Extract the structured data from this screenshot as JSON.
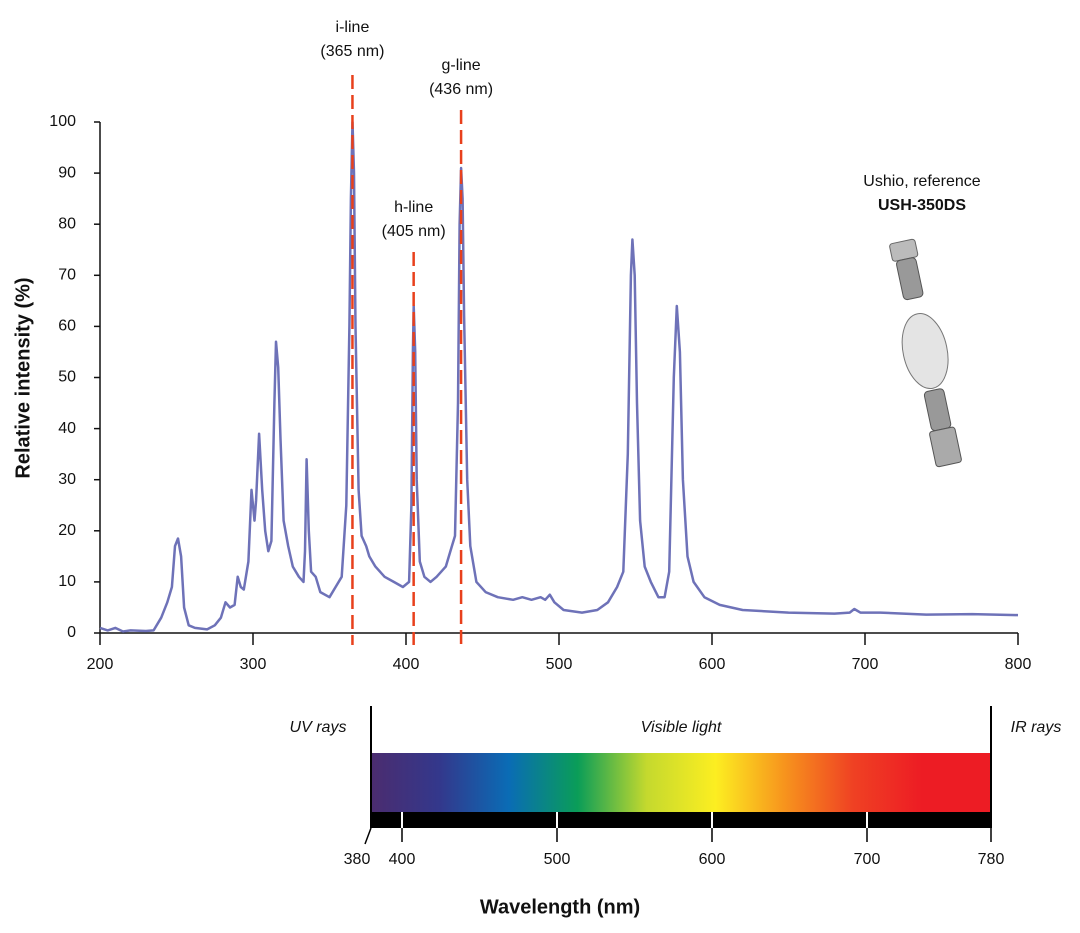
{
  "chart_data": [
    {
      "type": "line",
      "ylabel": "Relative intensity (%)",
      "xlim": [
        200,
        800
      ],
      "xticks": [
        200,
        300,
        400,
        500,
        600,
        700,
        800
      ],
      "ylim": [
        0,
        100
      ],
      "yticks": [
        0,
        10,
        20,
        30,
        40,
        50,
        60,
        70,
        80,
        90,
        100
      ],
      "color": "#6e72b8",
      "grid": false,
      "x": [
        200,
        205,
        210,
        215,
        220,
        230,
        235,
        240,
        244,
        247,
        249,
        251,
        253,
        255,
        258,
        262,
        270,
        275,
        279,
        282,
        285,
        288,
        290,
        292,
        294,
        297,
        299,
        301,
        302,
        304,
        306,
        308,
        310,
        312,
        314,
        315,
        316.5,
        318,
        320,
        323,
        326,
        330,
        333,
        334,
        335,
        336.5,
        338,
        341,
        344,
        350,
        354,
        358,
        361,
        363,
        364,
        365,
        366,
        367,
        369,
        371,
        374,
        376,
        380,
        386,
        392,
        398,
        402,
        403.5,
        404.5,
        405,
        406,
        407,
        409,
        412,
        416,
        420,
        426,
        430,
        432,
        434,
        435,
        436,
        437,
        438,
        440,
        442,
        446,
        452,
        460,
        470,
        476,
        482,
        488,
        491,
        494,
        497,
        503,
        515,
        525,
        532,
        538,
        542,
        545,
        547,
        548,
        549.5,
        551,
        553,
        556,
        560,
        565,
        569,
        572,
        575,
        577,
        579,
        581,
        584,
        588,
        595,
        605,
        620,
        650,
        680,
        690,
        693,
        697,
        710,
        740,
        770,
        800
      ],
      "values": [
        1,
        0.5,
        1,
        0.3,
        0.5,
        0.4,
        0.5,
        3,
        6,
        9,
        17,
        18.5,
        15,
        5,
        1.5,
        1,
        0.7,
        1.5,
        3,
        6,
        5,
        5.5,
        11,
        9,
        8.5,
        14,
        28,
        22,
        26,
        39,
        28,
        20,
        16,
        18,
        45,
        57,
        52,
        38,
        22,
        17,
        13,
        11,
        10,
        16,
        34,
        20,
        12,
        11,
        8,
        7,
        9,
        11,
        25,
        60,
        85,
        100,
        90,
        60,
        28,
        19,
        17,
        15,
        13,
        11,
        10,
        9,
        10,
        25,
        55,
        64,
        55,
        30,
        14,
        11,
        10,
        11,
        13,
        17,
        19,
        45,
        80,
        91,
        85,
        62,
        30,
        17,
        10,
        8,
        7,
        6.5,
        7,
        6.5,
        7,
        6.5,
        7.5,
        6,
        4.5,
        4,
        4.5,
        6,
        9,
        12,
        35,
        70,
        77,
        70,
        45,
        22,
        13,
        10,
        7,
        7,
        12,
        50,
        64,
        55,
        30,
        15,
        10,
        7,
        5.5,
        4.5,
        4,
        3.8,
        4,
        4.7,
        4,
        4,
        3.6,
        3.7,
        3.5
      ],
      "annotations": [
        {
          "label": "i-line",
          "sublabel": "(365 nm)",
          "x": 365
        },
        {
          "label": "h-line",
          "sublabel": "(405 nm)",
          "x": 405
        },
        {
          "label": "g-line",
          "sublabel": "(436 nm)",
          "x": 436
        }
      ],
      "annotation_color": "#e8401c",
      "image_caption": "Ushio, reference",
      "image_title": "USH-350DS"
    },
    {
      "type": "spectrum",
      "xlabel": "Wavelength (nm)",
      "xlim": [
        380,
        780
      ],
      "xticks": [
        380,
        400,
        500,
        600,
        700,
        780
      ],
      "regions": [
        "UV rays",
        "Visible light",
        "IR rays"
      ],
      "colors": [
        "#4b2c6f",
        "#33388c",
        "#0a6cb5",
        "#0a9d58",
        "#c4d92e",
        "#fcee21",
        "#f7941d",
        "#ef4123",
        "#ed1c24",
        "#ed1c24"
      ]
    }
  ]
}
